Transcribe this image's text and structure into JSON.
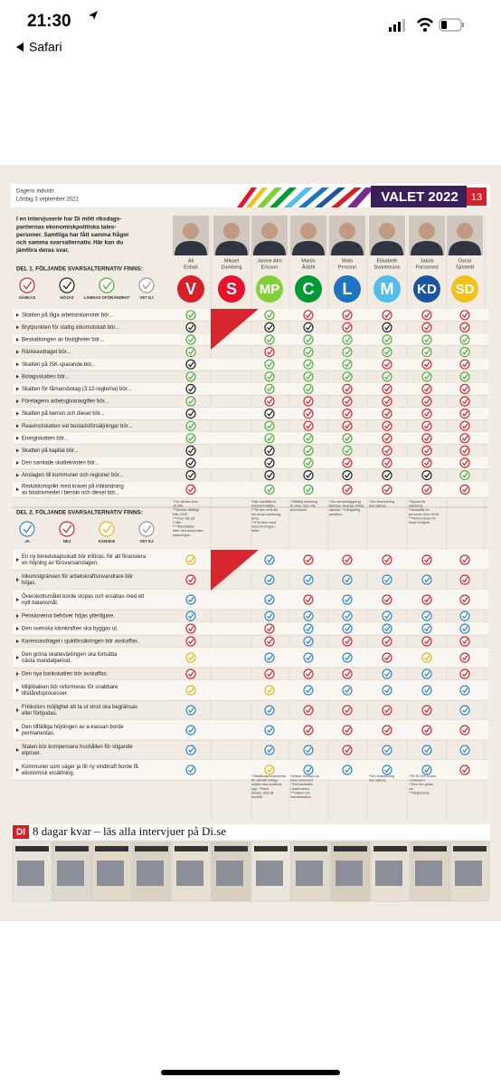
{
  "status": {
    "time": "21:30",
    "back": "Safari"
  },
  "header": {
    "source": "Dagens industri",
    "date": "Lördag 3 september 2022",
    "title": "VALET 2022",
    "page": "13"
  },
  "intro": [
    "I en intervjuserie har Di mött riksdags-",
    "partiernas ekonomiskpolitiska tales-",
    "personer. Samtliga har fått samma frågor",
    "och samma svarsalternativ. Här kan du",
    "jämföra deras svar."
  ],
  "parties": [
    {
      "name": [
        "Ali",
        "Esbati"
      ],
      "label": "V",
      "color": "#d61f26"
    },
    {
      "name": [
        "Mikael",
        "Damberg"
      ],
      "label": "S",
      "color": "#e8112d"
    },
    {
      "name": [
        "Janine Alm",
        "Ericson"
      ],
      "label": "MP",
      "color": "#83cf39"
    },
    {
      "name": [
        "Martin",
        "Ådahl"
      ],
      "label": "C",
      "color": "#009933"
    },
    {
      "name": [
        "Mats",
        "Persson"
      ],
      "label": "L",
      "color": "#1f74c0"
    },
    {
      "name": [
        "Elisabeth",
        "Svantesson"
      ],
      "label": "M",
      "color": "#52bdec"
    },
    {
      "name": [
        "Jakob",
        "Forssmed"
      ],
      "label": "KD",
      "color": "#1b55a0"
    },
    {
      "name": [
        "Oscar",
        "Sjöstedt"
      ],
      "label": "SD",
      "color": "#f2c21a"
    }
  ],
  "part1": {
    "heading": "DEL 1. FÖLJANDE SVARSALTERNATIV FINNS:",
    "legend": [
      {
        "label": "SÄNKAS",
        "color": "red"
      },
      {
        "label": "HÖJAS",
        "color": "black"
      },
      {
        "label": "LÄMNAS OFÖRÄNDRAT",
        "color": "green"
      },
      {
        "label": "VET EJ",
        "color": "gray"
      }
    ],
    "rows": [
      {
        "text": [
          "Skatten på låga arbetsinkomster bör..."
        ],
        "answers": [
          "green",
          null,
          "green",
          "red",
          "red",
          "red",
          "red",
          "red"
        ]
      },
      {
        "text": [
          "Brytpunkten för statlig inkomstskatt bör..."
        ],
        "answers": [
          "black",
          null,
          "black",
          "black",
          "red",
          "black",
          "red",
          "red"
        ]
      },
      {
        "text": [
          "Beskattningen av fastigheter bör..."
        ],
        "answers": [
          "green",
          null,
          "green",
          "green",
          "green",
          "green",
          "green",
          "green"
        ]
      },
      {
        "text": [
          "Ränteavdraget bör..."
        ],
        "answers": [
          "green",
          null,
          "red",
          "green",
          "green",
          "green",
          "green",
          "green"
        ]
      },
      {
        "text": [
          "Skatten på ISK-sparande bör..."
        ],
        "answers": [
          "black",
          null,
          "green",
          "green",
          "green",
          "red",
          "red",
          "red"
        ]
      },
      {
        "text": [
          "Bolagsskatten bör..."
        ],
        "answers": [
          "green",
          null,
          "green",
          "green",
          "green",
          "green",
          "green",
          "green"
        ]
      },
      {
        "text": [
          "Skatten för fåmansbolag (3:12-reglerna) bör..."
        ],
        "answers": [
          "black",
          null,
          "green",
          "green",
          "red",
          "red",
          "red",
          "red"
        ]
      },
      {
        "text": [
          "Företagens arbetsgivaravgifter bör..."
        ],
        "answers": [
          "green",
          null,
          "red",
          "red",
          "red",
          "red",
          "red",
          "red"
        ]
      },
      {
        "text": [
          "Skatten på bensin och diesel bör..."
        ],
        "answers": [
          "black",
          null,
          "black",
          "red",
          "red",
          "red",
          "red",
          "red"
        ]
      },
      {
        "text": [
          "Reavinstskatten vid bostadsförsäljningar bör..."
        ],
        "answers": [
          "green",
          null,
          "green",
          "red",
          "red",
          "red",
          "red",
          "red"
        ]
      },
      {
        "text": [
          "Energiskatten bör..."
        ],
        "answers": [
          "green",
          null,
          "green",
          "green",
          "green",
          "red",
          "red",
          "red"
        ]
      },
      {
        "text": [
          "Skatten på kapital bör..."
        ],
        "answers": [
          "black",
          null,
          "black",
          "green",
          "green",
          "red",
          "red",
          "red"
        ]
      },
      {
        "text": [
          "Den samlade skattekvoten bör..."
        ],
        "answers": [
          "black",
          null,
          "black",
          "green",
          "red",
          "red",
          "red",
          "red"
        ]
      },
      {
        "text": [
          "Anslagen till kommuner och regioner bör..."
        ],
        "answers": [
          "black",
          null,
          "black",
          "black",
          "black",
          "black",
          "black",
          "green"
        ]
      },
      {
        "text": [
          "Reduktionsplikt med kravet på inblandning",
          "av biodrivmedel i bensin och diesel bör..."
        ],
        "answers": [
          "red",
          null,
          "green",
          "green",
          "red",
          "red",
          "red",
          "red"
        ]
      }
    ],
    "footnotes": [
      [
        "*För värden över",
        "10 Mkr.",
        "**Sänkas tillfälligt",
        "från 2025.",
        "***Över tak på",
        "2 Mkr.",
        "****Återställas",
        "efter den temporära",
        "sänkningen."
      ],
      null,
      [
        "*När hushållens",
        "ekonomi tillåter.",
        "**Till den nivå det",
        "var innan sänkning-",
        "arna.",
        "***För dem med",
        "stora förmögen-",
        "heter."
      ],
      [
        "*Tillfällig sänkning",
        "är okej, men inte",
        "permanent."
      ],
      [
        "*Om senareläggning",
        "behöver Sverige införa",
        "sänkas. **Långsiktig",
        "ambition."
      ],
      [
        "*Om finansiering",
        "kan säkras."
      ],
      [
        "*Öppna för",
        "sänkning.",
        "**Avskaffa för",
        "personer över 69 år.",
        "***Reformeras för",
        "ökad rörlighet."
      ],
      null
    ]
  },
  "part2": {
    "heading": "DEL 2. FÖLJANDE SVARSALTERNATIV FINNS:",
    "legend": [
      {
        "label": "JA",
        "color": "blue"
      },
      {
        "label": "NEJ",
        "color": "red"
      },
      {
        "label": "KANSKE",
        "color": "yellow"
      },
      {
        "label": "VET EJ",
        "color": "gray"
      }
    ],
    "rows": [
      {
        "text": [
          "En ny beredskapsskatt bör införas, för att finansiera",
          "en höjning av försvarsanslagen."
        ],
        "answers": [
          "yellow",
          null,
          "blue",
          "red",
          "red",
          "red",
          "red",
          "red"
        ]
      },
      {
        "text": [
          "Inkomstgränsen för arbetskraftsinvandrare bör",
          "höjas."
        ],
        "answers": [
          "red",
          null,
          "blue",
          "blue",
          "blue",
          "blue",
          "blue",
          "red"
        ]
      },
      {
        "text": [
          "Överskottsmålet borde slopas och ersättas med ett",
          "nytt balansmål."
        ],
        "answers": [
          "blue",
          null,
          "blue",
          "red",
          "blue",
          "red",
          "red",
          "red"
        ]
      },
      {
        "text": [
          "Pensionerna behöver höjas ytterligare."
        ],
        "answers": [
          "blue",
          null,
          "blue",
          "blue",
          "blue",
          "blue",
          "blue",
          "blue"
        ]
      },
      {
        "text": [
          "Den svenska kärnkraften ska byggas ut."
        ],
        "answers": [
          "red",
          null,
          "red",
          "blue",
          "blue",
          "blue",
          "blue",
          "blue"
        ]
      },
      {
        "text": [
          "Karensavdraget i sjukförsäkringen bör avskaffas."
        ],
        "answers": [
          "red",
          null,
          "red",
          "blue",
          "red",
          "red",
          "red",
          "red"
        ]
      },
      {
        "text": [
          "Den gröna skatteväxlingen ska fortsätta",
          "nästa mandatperiod."
        ],
        "answers": [
          "yellow",
          null,
          "blue",
          "blue",
          "blue",
          "red",
          "yellow",
          "red"
        ]
      },
      {
        "text": [
          "Den nya bankskatten bör avskaffas."
        ],
        "answers": [
          "red",
          null,
          "red",
          "red",
          "red",
          "blue",
          "blue",
          "red"
        ]
      },
      {
        "text": [
          "Miljöbalken bör reformeras för snabbare",
          "tillståndsprocesser."
        ],
        "answers": [
          "yellow",
          null,
          "yellow",
          "blue",
          "blue",
          "blue",
          "blue",
          "blue"
        ]
      },
      {
        "text": [
          "Friskolors möjlighet att ta ut vinst ska begränsas",
          "eller förbjudas."
        ],
        "answers": [
          "blue",
          null,
          "blue",
          "red",
          "red",
          "red",
          "red",
          "blue"
        ]
      },
      {
        "text": [
          "Den tillfälliga höjningen av a-kassan borde",
          "permanentas."
        ],
        "answers": [
          "blue",
          null,
          "blue",
          "red",
          "red",
          "red",
          "red",
          "red"
        ]
      },
      {
        "text": [
          "Staten bör kompensera hushållen för stigande",
          "elpriser."
        ],
        "answers": [
          "blue",
          null,
          "blue",
          "blue",
          "red",
          "blue",
          "blue",
          "blue"
        ]
      },
      {
        "text": [
          "Kommuner som säger ja till ny vindkraft borde få",
          "ekonomisk ersättning."
        ],
        "answers": [
          "blue",
          null,
          "yellow",
          "blue",
          "blue",
          "blue",
          "blue",
          "red"
        ]
      }
    ],
    "footnotes": [
      null,
      null,
      [
        "*Tillståndsprocesserna",
        "för särskilt viktiga",
        "miljöer ska snabbas",
        "upp. **Med",
        "riktade stöd till",
        "hushåll."
      ],
      [
        "*Kräver översyn av",
        "hela ramverket.",
        "**Det fastställs",
        "i marknaden.",
        "***Staten bör",
        "framtidssäkra."
      ],
      null,
      [
        "*Om finansiering",
        "kan säkras."
      ],
      [
        "*Till 35 000 kronor",
        "i månaden.",
        "**Den bör göras",
        "om.",
        "***Begränsas."
      ],
      null
    ]
  },
  "banner": {
    "logo": "DI",
    "text": "8 dagar kvar – läs alla intervjuer på Di.se"
  }
}
